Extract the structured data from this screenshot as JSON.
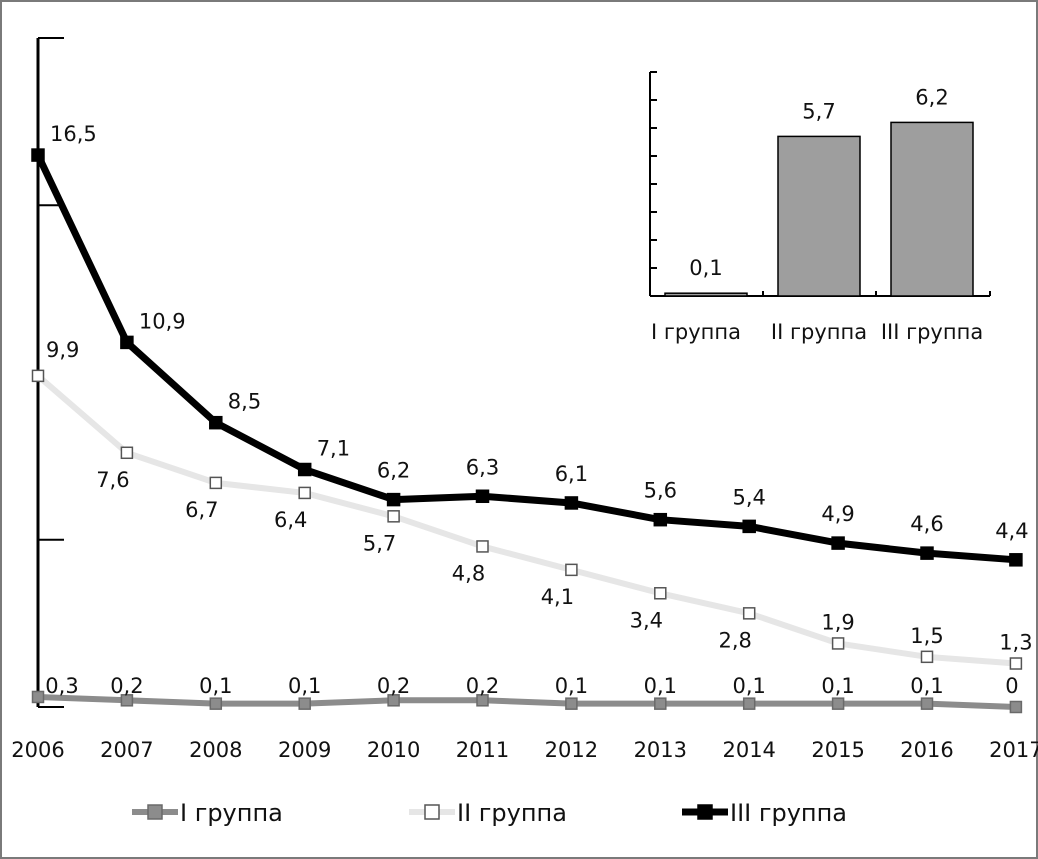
{
  "chart_data": [
    {
      "type": "line",
      "x": [
        "2006",
        "2007",
        "2008",
        "2009",
        "2010",
        "2011",
        "2012",
        "2013",
        "2014",
        "2015",
        "2016",
        "2017"
      ],
      "ylim": [
        0,
        18
      ],
      "series": [
        {
          "name": "I группа",
          "values": [
            0.3,
            0.2,
            0.1,
            0.1,
            0.2,
            0.2,
            0.1,
            0.1,
            0.1,
            0.1,
            0.1,
            0
          ],
          "labels": [
            "0,3",
            "0,2",
            "0,1",
            "0,1",
            "0,2",
            "0,2",
            "0,1",
            "0,1",
            "0,1",
            "0,1",
            "0,1",
            "0"
          ],
          "color": "#8c8c8c",
          "marker": "square-filled"
        },
        {
          "name": "II группа",
          "values": [
            9.9,
            7.6,
            6.7,
            6.4,
            5.7,
            4.8,
            4.1,
            3.4,
            2.8,
            1.9,
            1.5,
            1.3
          ],
          "labels": [
            "9,9",
            "7,6",
            "6,7",
            "6,4",
            "5,7",
            "4,8",
            "4,1",
            "3,4",
            "2,8",
            "1,9",
            "1,5",
            "1,3"
          ],
          "color": "#e6e6e6",
          "marker": "square-open"
        },
        {
          "name": "III группа",
          "values": [
            16.5,
            10.9,
            8.5,
            7.1,
            6.2,
            6.3,
            6.1,
            5.6,
            5.4,
            4.9,
            4.6,
            4.4
          ],
          "labels": [
            "16,5",
            "10,9",
            "8,5",
            "7,1",
            "6,2",
            "6,3",
            "6,1",
            "5,6",
            "5,4",
            "4,9",
            "4,6",
            "4,4"
          ],
          "color": "#000000",
          "marker": "square-filled"
        }
      ],
      "legend_position": "bottom",
      "grid": false
    },
    {
      "type": "bar",
      "categories": [
        "I группа",
        "II группа",
        "III группа"
      ],
      "values": [
        0.1,
        5.7,
        6.2
      ],
      "labels": [
        "0,1",
        "5,7",
        "6,2"
      ],
      "ylim": [
        0,
        8
      ],
      "bar_color": "#9e9e9e",
      "position": "inset top-right"
    }
  ]
}
